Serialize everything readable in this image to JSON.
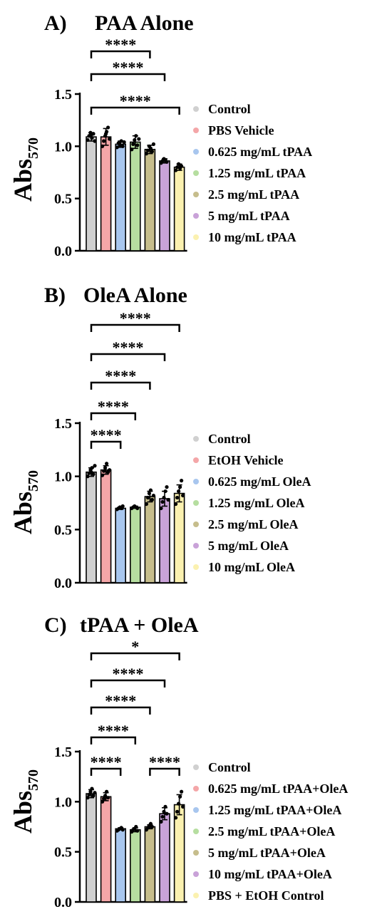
{
  "figure": {
    "panels": [
      {
        "panel_label": "A)",
        "title": "PAA Alone",
        "ylabel": "Abs",
        "ylabel_sub": "570",
        "yticks": [
          "0.0",
          "0.5",
          "1.0",
          "1.5"
        ],
        "legend": [
          "Control",
          "PBS Vehicle",
          "0.625 mg/mL tPAA",
          "1.25 mg/mL tPAA",
          "2.5 mg/mL tPAA",
          "5 mg/mL tPAA",
          "10 mg/mL tPAA"
        ],
        "significance": [
          {
            "from": 0,
            "to": 4,
            "label": "****"
          },
          {
            "from": 0,
            "to": 5,
            "label": "****"
          },
          {
            "from": 0,
            "to": 6,
            "label": "****"
          }
        ]
      },
      {
        "panel_label": "B)",
        "title": "OleA Alone",
        "ylabel": "Abs",
        "ylabel_sub": "570",
        "yticks": [
          "0.0",
          "0.5",
          "1.0",
          "1.5"
        ],
        "legend": [
          "Control",
          "EtOH Vehicle",
          "0.625 mg/mL OleA",
          "1.25 mg/mL OleA",
          "2.5 mg/mL OleA",
          "5 mg/mL OleA",
          "10 mg/mL OleA"
        ],
        "significance": [
          {
            "from": 0,
            "to": 2,
            "label": "****"
          },
          {
            "from": 0,
            "to": 3,
            "label": "****"
          },
          {
            "from": 0,
            "to": 4,
            "label": "****"
          },
          {
            "from": 0,
            "to": 5,
            "label": "****"
          },
          {
            "from": 0,
            "to": 6,
            "label": "****"
          }
        ]
      },
      {
        "panel_label": "C)",
        "title": "tPAA + OleA",
        "ylabel": "Abs",
        "ylabel_sub": "570",
        "yticks": [
          "0.0",
          "0.5",
          "1.0",
          "1.5"
        ],
        "legend": [
          "Control",
          "0.625 mg/mL tPAA+OleA",
          "1.25 mg/mL tPAA+OleA",
          "2.5 mg/mL tPAA+OleA",
          "5 mg/mL tPAA+OleA",
          "10 mg/mL tPAA+OleA",
          "PBS + EtOH Control"
        ],
        "significance": [
          {
            "from": 0,
            "to": 2,
            "label": "****"
          },
          {
            "from": 0,
            "to": 3,
            "label": "****"
          },
          {
            "from": 0,
            "to": 4,
            "label": "****"
          },
          {
            "from": 0,
            "to": 5,
            "label": "****"
          },
          {
            "from": 0,
            "to": 6,
            "label": "*"
          },
          {
            "from": 4,
            "to": 6,
            "label": "****"
          }
        ]
      }
    ]
  },
  "chart_data": [
    {
      "type": "bar",
      "title": "PAA Alone",
      "ylabel": "Abs570",
      "ylim": [
        0,
        1.5
      ],
      "categories": [
        "Control",
        "PBS Vehicle",
        "0.625 mg/mL tPAA",
        "1.25 mg/mL tPAA",
        "2.5 mg/mL tPAA",
        "5 mg/mL tPAA",
        "10 mg/mL tPAA"
      ],
      "values": [
        1.09,
        1.09,
        1.02,
        1.04,
        0.97,
        0.86,
        0.8
      ],
      "errors": [
        0.04,
        0.08,
        0.03,
        0.06,
        0.04,
        0.02,
        0.03
      ],
      "points": [
        [
          1.06,
          1.1,
          1.13,
          1.08,
          1.12,
          1.05,
          1.11
        ],
        [
          1.0,
          1.05,
          1.1,
          1.14,
          1.18,
          1.07,
          1.12
        ],
        [
          0.99,
          1.03,
          1.01,
          1.05,
          1.0,
          1.04
        ],
        [
          0.97,
          1.02,
          1.06,
          1.1,
          1.01,
          1.07
        ],
        [
          0.93,
          0.96,
          1.0,
          0.98,
          0.95,
          1.02
        ],
        [
          0.84,
          0.86,
          0.88,
          0.87,
          0.85
        ],
        [
          0.77,
          0.8,
          0.83,
          0.79,
          0.81
        ]
      ],
      "colors": [
        "#d0d0d0",
        "#f4a6a8",
        "#a8c6ee",
        "#b6dea0",
        "#c6bd8c",
        "#c9a2d8",
        "#fbf1b0"
      ],
      "legend_placement": "right",
      "grid": false
    },
    {
      "type": "bar",
      "title": "OleA Alone",
      "ylabel": "Abs570",
      "ylim": [
        0,
        1.5
      ],
      "categories": [
        "Control",
        "EtOH Vehicle",
        "0.625 mg/mL OleA",
        "1.25 mg/mL OleA",
        "2.5 mg/mL OleA",
        "5 mg/mL OleA",
        "10 mg/mL OleA"
      ],
      "values": [
        1.04,
        1.06,
        0.7,
        0.71,
        0.81,
        0.79,
        0.84
      ],
      "errors": [
        0.04,
        0.04,
        0.01,
        0.01,
        0.05,
        0.07,
        0.08
      ],
      "points": [
        [
          1.0,
          1.03,
          1.06,
          1.08,
          1.02,
          1.1,
          1.04
        ],
        [
          1.01,
          1.05,
          1.08,
          1.12,
          1.04,
          1.06
        ],
        [
          0.69,
          0.7,
          0.71,
          0.7,
          0.72
        ],
        [
          0.7,
          0.71,
          0.72,
          0.71,
          0.7
        ],
        [
          0.74,
          0.8,
          0.84,
          0.87,
          0.78,
          0.82
        ],
        [
          0.7,
          0.76,
          0.8,
          0.86,
          0.9,
          0.78
        ],
        [
          0.74,
          0.8,
          0.86,
          0.9,
          0.96,
          0.82
        ]
      ],
      "colors": [
        "#d0d0d0",
        "#f4a6a8",
        "#a8c6ee",
        "#b6dea0",
        "#c6bd8c",
        "#c9a2d8",
        "#fbf1b0"
      ],
      "legend_placement": "right",
      "grid": false
    },
    {
      "type": "bar",
      "title": "tPAA + OleA",
      "ylabel": "Abs570",
      "ylim": [
        0,
        1.5
      ],
      "categories": [
        "Control",
        "0.625 mg/mL tPAA+OleA",
        "1.25 mg/mL tPAA+OleA",
        "2.5 mg/mL tPAA+OleA",
        "5 mg/mL tPAA+OleA",
        "10 mg/mL tPAA+OleA",
        "PBS + EtOH Control"
      ],
      "values": [
        1.08,
        1.05,
        0.73,
        0.72,
        0.75,
        0.88,
        0.97
      ],
      "errors": [
        0.04,
        0.04,
        0.01,
        0.02,
        0.02,
        0.06,
        0.1
      ],
      "points": [
        [
          1.04,
          1.07,
          1.1,
          1.13,
          1.06,
          1.09
        ],
        [
          1.0,
          1.03,
          1.06,
          1.1,
          1.04
        ],
        [
          0.71,
          0.72,
          0.73,
          0.74,
          0.72
        ],
        [
          0.7,
          0.72,
          0.73,
          0.75,
          0.71
        ],
        [
          0.72,
          0.74,
          0.76,
          0.78,
          0.75
        ],
        [
          0.8,
          0.85,
          0.9,
          0.95,
          0.88
        ],
        [
          0.84,
          0.9,
          0.98,
          1.05,
          1.1,
          0.95
        ]
      ],
      "colors": [
        "#d0d0d0",
        "#f4a6a8",
        "#a8c6ee",
        "#b6dea0",
        "#c6bd8c",
        "#c9a2d8",
        "#fbf1b0"
      ],
      "legend_placement": "right",
      "grid": false
    }
  ]
}
